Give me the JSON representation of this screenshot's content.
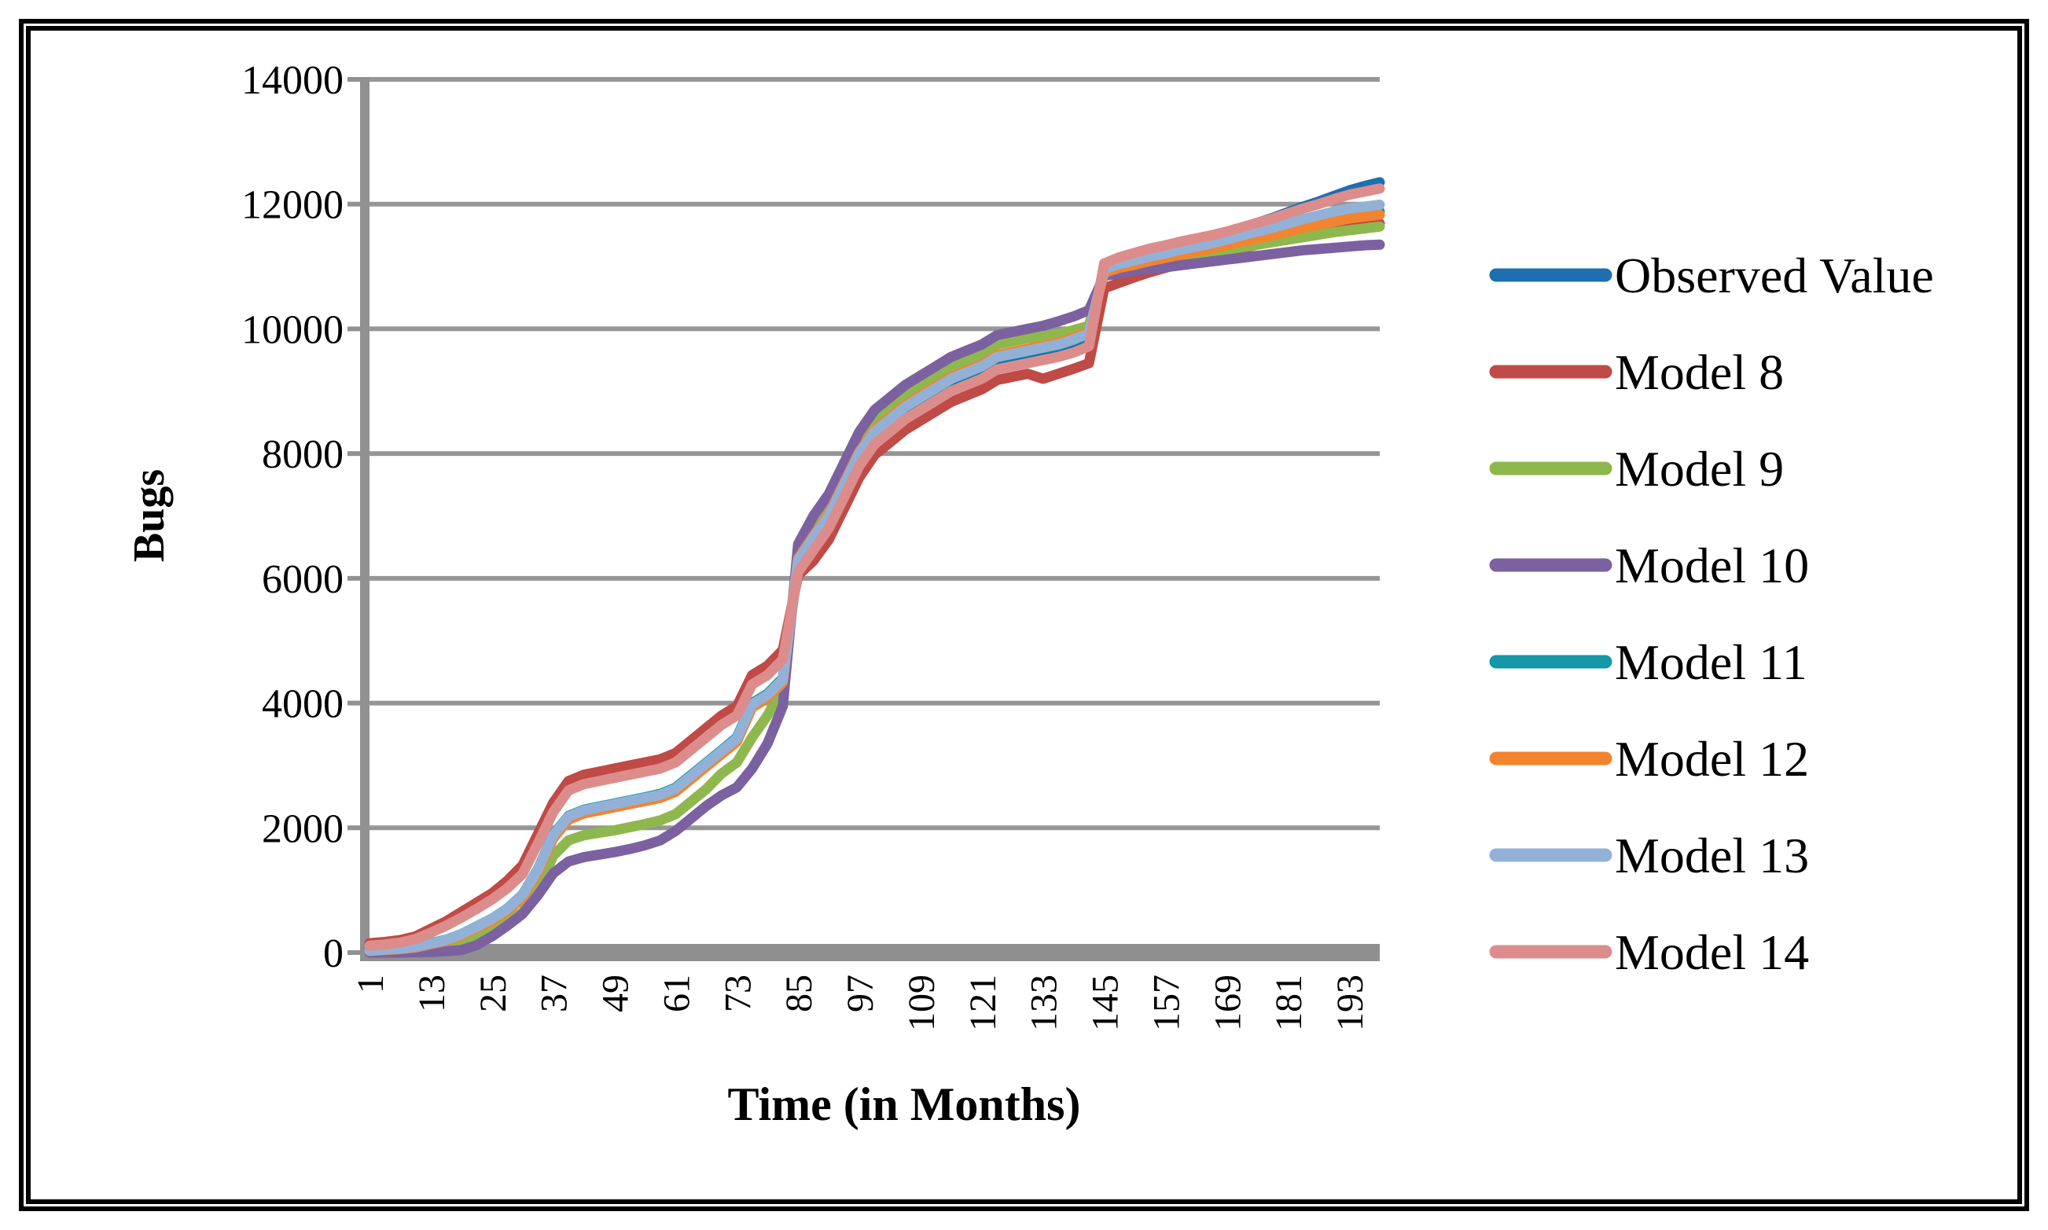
{
  "chart_data": {
    "type": "line",
    "title": "",
    "xlabel": "Time (in Months)",
    "ylabel": "Bugs",
    "x_ticks": [
      1,
      13,
      25,
      37,
      49,
      61,
      73,
      85,
      97,
      109,
      121,
      133,
      145,
      157,
      169,
      181,
      193
    ],
    "y_ticks": [
      0,
      2000,
      4000,
      6000,
      8000,
      10000,
      12000,
      14000
    ],
    "xlim": [
      1,
      199
    ],
    "ylim": [
      0,
      14000
    ],
    "grid": "horizontal",
    "legend_position": "right",
    "colors": {
      "gridline": "#969696",
      "axis": "#919191",
      "zero_band": "#8F8F8F",
      "text": "#000000",
      "background": "#FFFFFF"
    },
    "x": [
      1,
      4,
      7,
      10,
      13,
      16,
      19,
      22,
      25,
      28,
      31,
      34,
      37,
      40,
      43,
      46,
      49,
      52,
      55,
      58,
      61,
      64,
      67,
      70,
      73,
      76,
      79,
      82,
      85,
      88,
      91,
      94,
      97,
      100,
      103,
      106,
      109,
      112,
      115,
      118,
      121,
      124,
      127,
      130,
      133,
      136,
      139,
      142,
      145,
      148,
      151,
      154,
      157,
      160,
      163,
      166,
      169,
      172,
      175,
      178,
      181,
      184,
      187,
      190,
      193,
      196,
      199
    ],
    "series": [
      {
        "name": "Observed Value",
        "color": "#1D6FAF",
        "values": [
          40,
          55,
          70,
          90,
          140,
          190,
          280,
          400,
          520,
          680,
          900,
          1300,
          1850,
          2150,
          2250,
          2300,
          2350,
          2400,
          2450,
          2500,
          2600,
          2800,
          3000,
          3200,
          3400,
          3950,
          4100,
          4350,
          6250,
          6600,
          6950,
          7450,
          7950,
          8300,
          8500,
          8700,
          8850,
          9000,
          9150,
          9250,
          9350,
          9500,
          9550,
          9600,
          9650,
          9700,
          9780,
          9880,
          11000,
          11080,
          11150,
          11220,
          11280,
          11350,
          11410,
          11470,
          11540,
          11620,
          11700,
          11780,
          11870,
          11960,
          12040,
          12130,
          12220,
          12290,
          12350
        ]
      },
      {
        "name": "Model 8",
        "color": "#C04A46",
        "values": [
          150,
          170,
          200,
          260,
          380,
          500,
          650,
          800,
          950,
          1150,
          1400,
          1900,
          2400,
          2750,
          2850,
          2900,
          2950,
          3000,
          3050,
          3100,
          3200,
          3400,
          3600,
          3800,
          3950,
          4450,
          4600,
          4850,
          6050,
          6280,
          6620,
          7120,
          7620,
          7980,
          8180,
          8380,
          8530,
          8680,
          8830,
          8930,
          9030,
          9180,
          9230,
          9280,
          9200,
          9280,
          9360,
          9450,
          10650,
          10740,
          10830,
          10910,
          10980,
          11050,
          11110,
          11170,
          11230,
          11290,
          11350,
          11400,
          11450,
          11500,
          11550,
          11600,
          11640,
          11670,
          11690
        ]
      },
      {
        "name": "Model 9",
        "color": "#8EB84D",
        "values": [
          20,
          30,
          45,
          60,
          90,
          130,
          180,
          260,
          340,
          480,
          650,
          1000,
          1550,
          1800,
          1880,
          1920,
          1960,
          2010,
          2060,
          2120,
          2220,
          2420,
          2620,
          2870,
          3050,
          3450,
          3800,
          4250,
          6400,
          6850,
          7200,
          7700,
          8200,
          8550,
          8750,
          8950,
          9100,
          9250,
          9400,
          9500,
          9600,
          9750,
          9800,
          9850,
          9880,
          9920,
          9980,
          10050,
          10930,
          10990,
          11030,
          11070,
          11110,
          11150,
          11190,
          11230,
          11270,
          11310,
          11350,
          11390,
          11430,
          11470,
          11510,
          11550,
          11580,
          11610,
          11640
        ]
      },
      {
        "name": "Model 10",
        "color": "#7C61A1",
        "values": [
          0,
          0,
          0,
          5,
          10,
          20,
          40,
          120,
          260,
          430,
          620,
          920,
          1270,
          1460,
          1530,
          1570,
          1610,
          1660,
          1720,
          1800,
          1950,
          2150,
          2350,
          2520,
          2650,
          2950,
          3350,
          3950,
          6550,
          7000,
          7350,
          7850,
          8350,
          8700,
          8900,
          9100,
          9250,
          9400,
          9550,
          9650,
          9750,
          9900,
          9950,
          10000,
          10050,
          10120,
          10200,
          10300,
          10850,
          10890,
          10930,
          10960,
          10990,
          11020,
          11050,
          11080,
          11110,
          11140,
          11170,
          11200,
          11230,
          11260,
          11280,
          11300,
          11320,
          11340,
          11350
        ]
      },
      {
        "name": "Model 11",
        "color": "#1397A9",
        "values": [
          45,
          60,
          78,
          100,
          152,
          205,
          298,
          420,
          545,
          705,
          930,
          1340,
          1890,
          2190,
          2290,
          2340,
          2390,
          2440,
          2490,
          2545,
          2645,
          2845,
          3045,
          3245,
          3450,
          4000,
          4150,
          4400,
          6280,
          6640,
          6990,
          7490,
          7990,
          8340,
          8540,
          8740,
          8890,
          9040,
          9190,
          9290,
          9390,
          9540,
          9590,
          9640,
          9690,
          9740,
          9820,
          9920,
          10980,
          11010,
          11060,
          11110,
          11160,
          11210,
          11260,
          11310,
          11370,
          11430,
          11490,
          11540,
          11600,
          11660,
          11720,
          11770,
          11820,
          11850,
          11880
        ]
      },
      {
        "name": "Model 12",
        "color": "#F28430",
        "values": [
          25,
          40,
          55,
          80,
          135,
          185,
          270,
          390,
          505,
          665,
          880,
          1280,
          1830,
          2130,
          2230,
          2280,
          2330,
          2380,
          2430,
          2480,
          2580,
          2780,
          2980,
          3180,
          3380,
          3930,
          4080,
          4330,
          6320,
          6680,
          7030,
          7530,
          8030,
          8380,
          8580,
          8780,
          8930,
          9080,
          9230,
          9330,
          9430,
          9580,
          9630,
          9680,
          9730,
          9780,
          9860,
          9960,
          10900,
          10980,
          11030,
          11090,
          11140,
          11190,
          11240,
          11290,
          11340,
          11400,
          11450,
          11500,
          11560,
          11620,
          11670,
          11720,
          11770,
          11800,
          11830
        ]
      },
      {
        "name": "Model 13",
        "color": "#93B1D7",
        "values": [
          30,
          48,
          65,
          92,
          148,
          200,
          295,
          415,
          540,
          700,
          925,
          1330,
          1880,
          2180,
          2280,
          2330,
          2380,
          2430,
          2480,
          2530,
          2630,
          2830,
          3030,
          3230,
          3430,
          3980,
          4130,
          4380,
          6290,
          6650,
          7000,
          7500,
          8000,
          8350,
          8550,
          8750,
          8900,
          9050,
          9200,
          9300,
          9400,
          9550,
          9600,
          9650,
          9700,
          9750,
          9830,
          9930,
          10960,
          11040,
          11100,
          11160,
          11210,
          11270,
          11320,
          11370,
          11430,
          11500,
          11560,
          11620,
          11690,
          11760,
          11820,
          11880,
          11930,
          11960,
          11990
        ]
      },
      {
        "name": "Model 14",
        "color": "#DD8C8C",
        "values": [
          110,
          130,
          160,
          215,
          320,
          430,
          560,
          700,
          850,
          1030,
          1260,
          1750,
          2250,
          2600,
          2700,
          2750,
          2800,
          2850,
          2900,
          2950,
          3050,
          3250,
          3450,
          3650,
          3800,
          4300,
          4450,
          4700,
          6100,
          6450,
          6800,
          7300,
          7800,
          8150,
          8350,
          8550,
          8700,
          8850,
          9000,
          9100,
          9200,
          9350,
          9400,
          9450,
          9500,
          9550,
          9620,
          9720,
          11050,
          11150,
          11220,
          11290,
          11340,
          11400,
          11450,
          11500,
          11560,
          11630,
          11700,
          11770,
          11850,
          11930,
          12000,
          12080,
          12150,
          12200,
          12250
        ]
      }
    ]
  }
}
